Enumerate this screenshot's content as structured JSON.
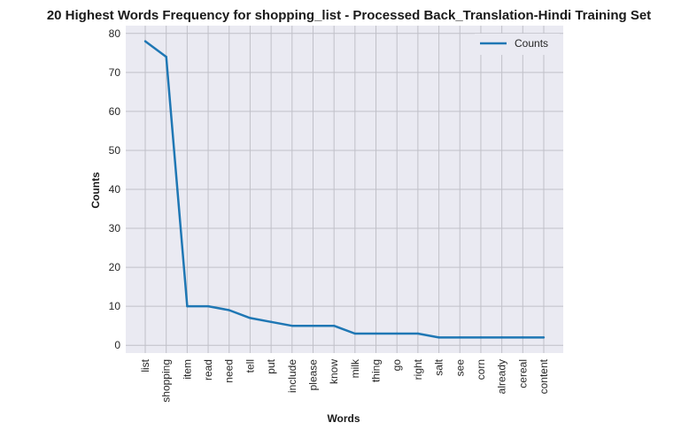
{
  "chart_data": {
    "type": "line",
    "title": "20 Highest Words Frequency for shopping_list - Processed Back_Translation-Hindi Training Set",
    "xlabel": "Words",
    "ylabel": "Counts",
    "categories": [
      "list",
      "shopping",
      "item",
      "read",
      "need",
      "tell",
      "put",
      "include",
      "please",
      "know",
      "milk",
      "thing",
      "go",
      "right",
      "salt",
      "see",
      "corn",
      "already",
      "cereal",
      "content"
    ],
    "series": [
      {
        "name": "Counts",
        "values": [
          78,
          74,
          10,
          10,
          9,
          7,
          6,
          5,
          5,
          5,
          3,
          3,
          3,
          3,
          2,
          2,
          2,
          2,
          2,
          2
        ],
        "color": "#1f77b4"
      }
    ],
    "ylim": [
      -2,
      82
    ],
    "yticks": [
      0,
      10,
      20,
      30,
      40,
      50,
      60,
      70,
      80
    ],
    "grid": true,
    "legend_position": "top-right",
    "background_color": "#eaeaf2",
    "grid_color": "#c0c0c8"
  }
}
